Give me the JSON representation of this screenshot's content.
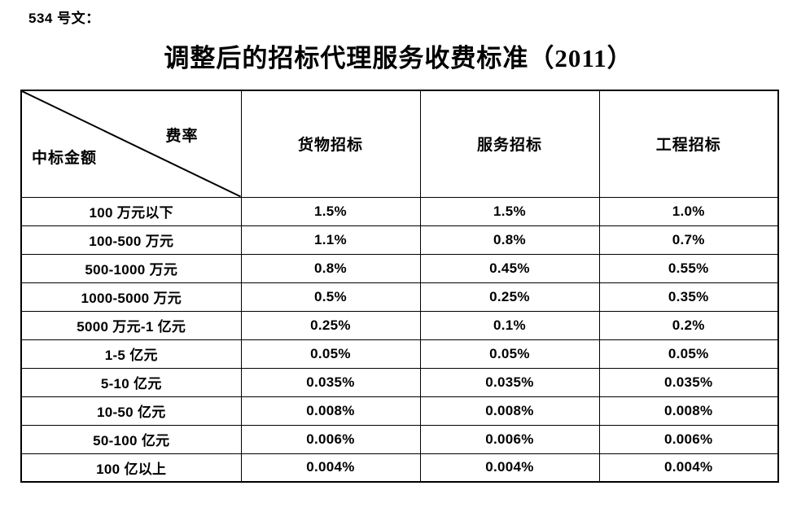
{
  "doc": {
    "ref_label": "534 号文：",
    "title": "调整后的招标代理服务收费标准（2011）"
  },
  "table": {
    "corner_top_right": "费率",
    "corner_bottom_left": "中标金额",
    "columns": [
      "货物招标",
      "服务招标",
      "工程招标"
    ],
    "rows": [
      {
        "label": "100 万元以下",
        "values": [
          "1.5%",
          "1.5%",
          "1.0%"
        ]
      },
      {
        "label": "100-500 万元",
        "values": [
          "1.1%",
          "0.8%",
          "0.7%"
        ]
      },
      {
        "label": "500-1000 万元",
        "values": [
          "0.8%",
          "0.45%",
          "0.55%"
        ]
      },
      {
        "label": "1000-5000 万元",
        "values": [
          "0.5%",
          "0.25%",
          "0.35%"
        ]
      },
      {
        "label": "5000 万元-1 亿元",
        "values": [
          "0.25%",
          "0.1%",
          "0.2%"
        ]
      },
      {
        "label": "1-5 亿元",
        "values": [
          "0.05%",
          "0.05%",
          "0.05%"
        ]
      },
      {
        "label": "5-10 亿元",
        "values": [
          "0.035%",
          "0.035%",
          "0.035%"
        ]
      },
      {
        "label": "10-50 亿元",
        "values": [
          "0.008%",
          "0.008%",
          "0.008%"
        ]
      },
      {
        "label": "50-100 亿元",
        "values": [
          "0.006%",
          "0.006%",
          "0.006%"
        ]
      },
      {
        "label": "100 亿以上",
        "values": [
          "0.004%",
          "0.004%",
          "0.004%"
        ]
      }
    ],
    "line_color": "#000000"
  }
}
